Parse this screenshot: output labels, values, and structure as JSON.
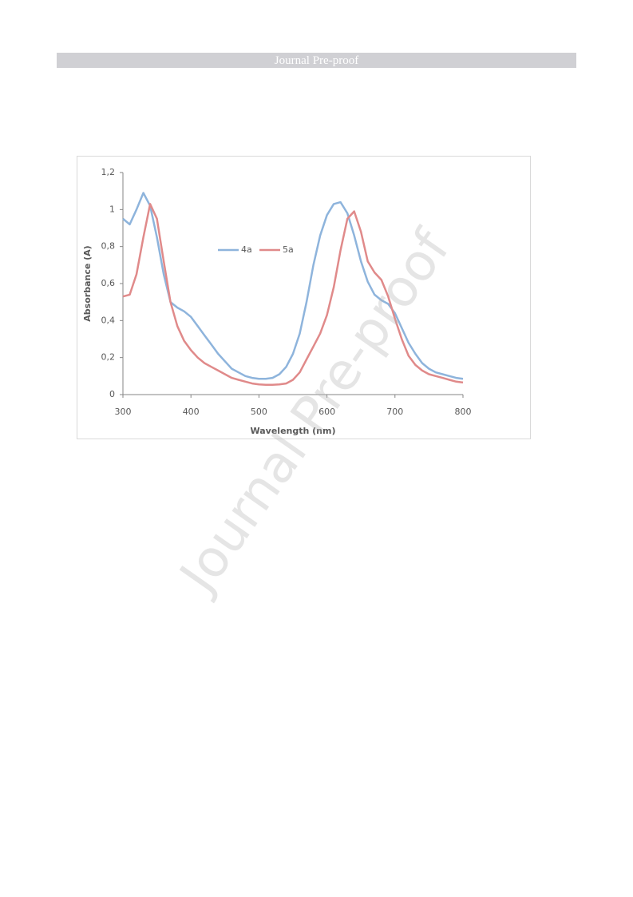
{
  "header": {
    "title": "Journal Pre-proof"
  },
  "watermark": "Journal Pre-proof",
  "chart_data": {
    "type": "line",
    "xlabel": "Wavelength (nm)",
    "ylabel": "Absorbance (A)",
    "x": [
      300,
      310,
      320,
      330,
      340,
      350,
      360,
      370,
      380,
      390,
      400,
      410,
      420,
      430,
      440,
      450,
      460,
      470,
      480,
      490,
      500,
      510,
      520,
      530,
      540,
      550,
      560,
      570,
      580,
      590,
      600,
      610,
      620,
      630,
      640,
      650,
      660,
      670,
      680,
      690,
      700,
      710,
      720,
      730,
      740,
      750,
      760,
      770,
      780,
      790,
      800
    ],
    "series": [
      {
        "name": "4a",
        "color": "#8eb4dc",
        "values": [
          0.95,
          0.92,
          1.0,
          1.09,
          1.02,
          0.85,
          0.65,
          0.5,
          0.47,
          0.45,
          0.42,
          0.37,
          0.32,
          0.27,
          0.22,
          0.18,
          0.14,
          0.12,
          0.1,
          0.09,
          0.085,
          0.085,
          0.09,
          0.11,
          0.15,
          0.22,
          0.33,
          0.5,
          0.7,
          0.86,
          0.97,
          1.03,
          1.04,
          0.98,
          0.86,
          0.72,
          0.61,
          0.54,
          0.51,
          0.49,
          0.44,
          0.36,
          0.28,
          0.22,
          0.17,
          0.14,
          0.12,
          0.11,
          0.1,
          0.09,
          0.085
        ]
      },
      {
        "name": "5a",
        "color": "#e08a8a",
        "values": [
          0.53,
          0.54,
          0.65,
          0.85,
          1.03,
          0.95,
          0.72,
          0.5,
          0.37,
          0.29,
          0.24,
          0.2,
          0.17,
          0.15,
          0.13,
          0.11,
          0.09,
          0.08,
          0.07,
          0.06,
          0.055,
          0.053,
          0.053,
          0.055,
          0.06,
          0.08,
          0.12,
          0.19,
          0.26,
          0.33,
          0.43,
          0.58,
          0.78,
          0.95,
          0.99,
          0.88,
          0.72,
          0.66,
          0.62,
          0.53,
          0.41,
          0.3,
          0.21,
          0.16,
          0.13,
          0.11,
          0.1,
          0.09,
          0.08,
          0.07,
          0.065
        ]
      }
    ],
    "xlim": [
      300,
      800
    ],
    "xticks": [
      300,
      400,
      500,
      600,
      700,
      800
    ],
    "ylim": [
      0,
      1.2
    ],
    "yticks": [
      0,
      {
        "value": 0.2,
        "label": "0,2"
      },
      {
        "value": 0.4,
        "label": "0,4"
      },
      {
        "value": 0.6,
        "label": "0,6"
      },
      {
        "value": 0.8,
        "label": "0,8"
      },
      1,
      {
        "value": 1.2,
        "label": "1,2"
      }
    ],
    "grid": false
  }
}
